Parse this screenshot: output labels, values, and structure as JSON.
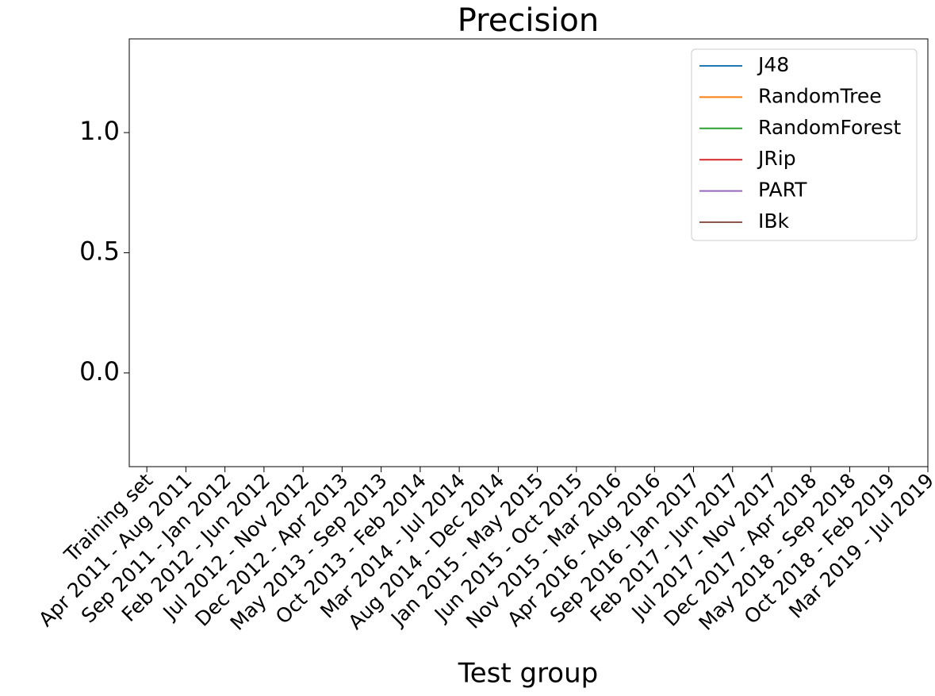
{
  "chart_data": {
    "type": "line",
    "title": "Precision",
    "x_label": "Test group",
    "categories": [
      "Training set",
      "Apr 2011 - Aug 2011",
      "Sep 2011 - Jan 2012",
      "Feb 2012 - Jun 2012",
      "Jul 2012 - Nov 2012",
      "Dec 2012 - Apr 2013",
      "May 2013 - Sep 2013",
      "Oct 2013 - Feb 2014",
      "Mar 2014 - Jul 2014",
      "Aug 2014 - Dec 2014",
      "Jan 2015 - May 2015",
      "Jun 2015 - Oct 2015",
      "Nov 2015 - Mar 2016",
      "Apr 2016 - Aug 2016",
      "Sep 2016 - Jan 2017",
      "Feb 2017 - Jun 2017",
      "Jul 2017 - Nov 2017",
      "Dec 2017 - Apr 2018",
      "May 2018 - Sep 2018",
      "Oct 2018 - Feb 2019",
      "Mar 2019 - Jul 2019"
    ],
    "series": [
      {
        "name": "J48",
        "color": "#1f77b4",
        "values": [
          null,
          null,
          null,
          null,
          null,
          null,
          null,
          null,
          null,
          null,
          null,
          null,
          null,
          null,
          null,
          null,
          null,
          null,
          null,
          null,
          null
        ]
      },
      {
        "name": "RandomTree",
        "color": "#ff7f0e",
        "values": [
          null,
          null,
          null,
          null,
          null,
          null,
          null,
          null,
          null,
          null,
          null,
          null,
          null,
          null,
          null,
          null,
          null,
          null,
          null,
          null,
          null
        ]
      },
      {
        "name": "RandomForest",
        "color": "#2ca02c",
        "values": [
          null,
          null,
          null,
          null,
          null,
          null,
          null,
          null,
          null,
          null,
          null,
          null,
          null,
          null,
          null,
          null,
          null,
          null,
          null,
          null,
          null
        ]
      },
      {
        "name": "JRip",
        "color": "#d62728",
        "values": [
          null,
          null,
          null,
          null,
          null,
          null,
          null,
          null,
          null,
          null,
          null,
          null,
          null,
          null,
          null,
          null,
          null,
          null,
          null,
          null,
          null
        ]
      },
      {
        "name": "PART",
        "color": "#9467bd",
        "values": [
          null,
          null,
          null,
          null,
          null,
          null,
          null,
          null,
          null,
          null,
          null,
          null,
          null,
          null,
          null,
          null,
          null,
          null,
          null,
          null,
          null
        ]
      },
      {
        "name": "IBk",
        "color": "#8c564b",
        "values": [
          null,
          null,
          null,
          null,
          null,
          null,
          null,
          null,
          null,
          null,
          null,
          null,
          null,
          null,
          null,
          null,
          null,
          null,
          null,
          null,
          null
        ]
      }
    ],
    "xlim": [
      -0.45,
      20
    ],
    "ylim": [
      -0.39,
      1.39
    ],
    "yticks": [
      {
        "value": 0,
        "label": "0.0"
      },
      0.5,
      {
        "value": 1,
        "label": "1.0"
      }
    ],
    "legend": "upper right",
    "grid": false
  }
}
